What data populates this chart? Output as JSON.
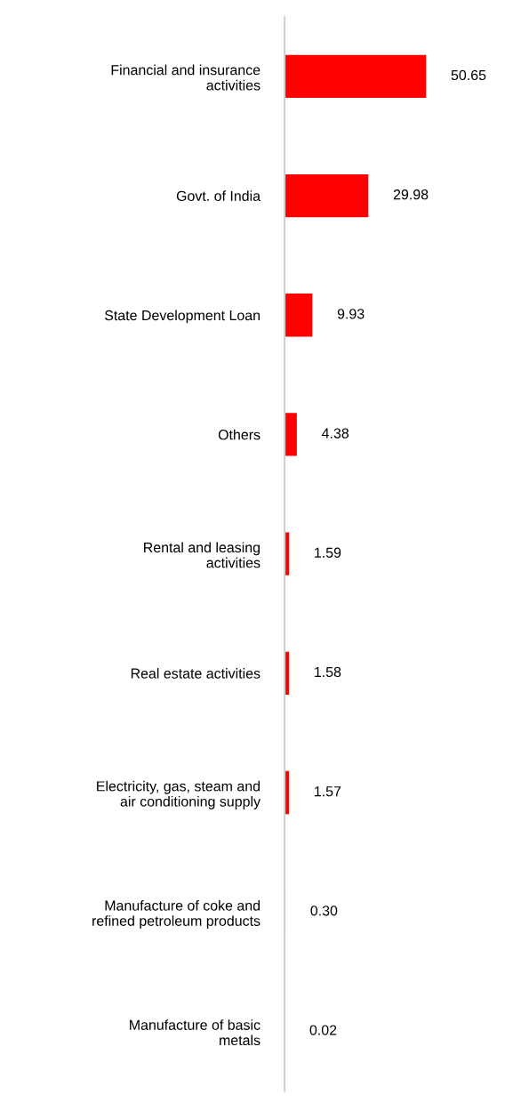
{
  "chart_data": {
    "type": "bar",
    "orientation": "horizontal",
    "categories": [
      "Financial and insurance\nactivities",
      "Govt. of India",
      "State Development Loan",
      "Others",
      "Rental and leasing\nactivities",
      "Real estate activities",
      "Electricity, gas, steam and\nair conditioning supply",
      "Manufacture of coke and\nrefined petroleum products",
      "Manufacture of basic\nmetals"
    ],
    "values": [
      50.65,
      29.98,
      9.93,
      4.38,
      1.59,
      1.58,
      1.57,
      0.3,
      0.02
    ],
    "colors": [
      "#ff0000",
      "#ff0000",
      "#ff0000",
      "#ff0000",
      "#ff0000",
      "#ff0000",
      "#ff0000",
      "#e8d8d0",
      "#e8d8d0"
    ],
    "value_labels": [
      "50.65",
      "29.98",
      "9.93",
      "4.38",
      "1.59",
      "1.58",
      "1.57",
      "0.30",
      "0.02"
    ],
    "tick_labels": "y",
    "grid": false,
    "legend": false
  }
}
